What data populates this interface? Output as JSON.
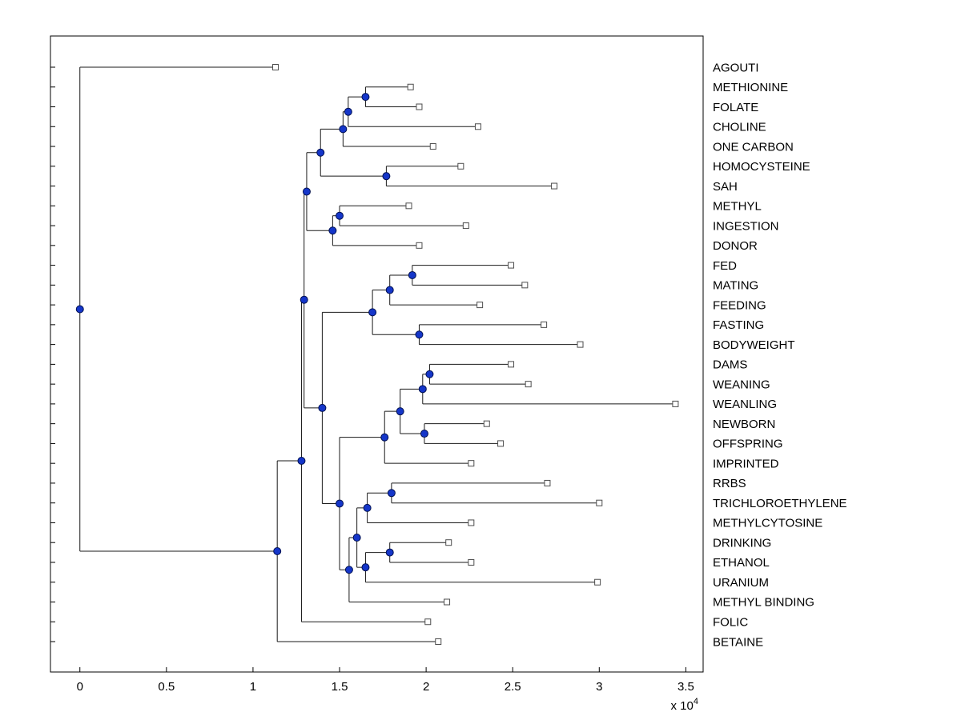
{
  "figure": {
    "background": "#ffffff",
    "colors": {
      "frame": "#000000",
      "branch": "#1a1a1a",
      "internal_node_fill": "#1536c9",
      "internal_node_edge": "#001050",
      "leaf_marker_fill": "#ffffff",
      "leaf_marker_edge": "#4d4d4d",
      "text": "#000000"
    }
  },
  "chart_data": {
    "type": "dendrogram",
    "orientation": "horizontal-root-left",
    "title": "",
    "xlabel": "",
    "ylabel": "",
    "x_axis": {
      "min": -0.17,
      "max": 3.6,
      "tick_values": [
        0,
        0.5,
        1,
        1.5,
        2,
        2.5,
        3,
        3.5
      ],
      "tick_labels": [
        "0",
        "0.5",
        "1",
        "1.5",
        "2",
        "2.5",
        "3",
        "3.5"
      ],
      "multiplier_base": "x 10",
      "multiplier_exponent": "4"
    },
    "y_axis": {
      "tick_per_leaf": true,
      "leaf_count": 30
    },
    "units_note": "branch x positions in units of 1e4",
    "leaves": [
      {
        "name": "AGOUTI",
        "x": 1.13
      },
      {
        "name": "METHIONINE",
        "x": 1.91
      },
      {
        "name": "FOLATE",
        "x": 1.96
      },
      {
        "name": "CHOLINE",
        "x": 2.3
      },
      {
        "name": "ONE CARBON",
        "x": 2.04
      },
      {
        "name": "HOMOCYSTEINE",
        "x": 2.2
      },
      {
        "name": "SAH",
        "x": 2.74
      },
      {
        "name": "METHYL",
        "x": 1.9
      },
      {
        "name": "INGESTION",
        "x": 2.23
      },
      {
        "name": "DONOR",
        "x": 1.96
      },
      {
        "name": "FED",
        "x": 2.49
      },
      {
        "name": "MATING",
        "x": 2.57
      },
      {
        "name": "FEEDING",
        "x": 2.31
      },
      {
        "name": "FASTING",
        "x": 2.68
      },
      {
        "name": "BODYWEIGHT",
        "x": 2.89
      },
      {
        "name": "DAMS",
        "x": 2.49
      },
      {
        "name": "WEANING",
        "x": 2.59
      },
      {
        "name": "WEANLING",
        "x": 3.44
      },
      {
        "name": "NEWBORN",
        "x": 2.35
      },
      {
        "name": "OFFSPRING",
        "x": 2.43
      },
      {
        "name": "IMPRINTED",
        "x": 2.26
      },
      {
        "name": "RRBS",
        "x": 2.7
      },
      {
        "name": "TRICHLOROETHYLENE",
        "x": 3.0
      },
      {
        "name": "METHYLCYTOSINE",
        "x": 2.26
      },
      {
        "name": "DRINKING",
        "x": 2.13
      },
      {
        "name": "ETHANOL",
        "x": 2.26
      },
      {
        "name": "URANIUM",
        "x": 2.99
      },
      {
        "name": "METHYL BINDING",
        "x": 2.12
      },
      {
        "name": "FOLIC",
        "x": 2.01
      },
      {
        "name": "BETAINE",
        "x": 2.07
      }
    ],
    "tree": {
      "x": 0,
      "children": [
        {
          "name": "AGOUTI",
          "x": 1.13
        },
        {
          "x": 1.14,
          "children": [
            {
              "x": 1.28,
              "children": [
                {
                  "x": 1.295,
                  "children": [
                    {
                      "x": 1.31,
                      "children": [
                        {
                          "x": 1.39,
                          "children": [
                            {
                              "x": 1.52,
                              "children": [
                                {
                                  "x": 1.55,
                                  "children": [
                                    {
                                      "x": 1.65,
                                      "children": [
                                        {
                                          "name": "METHIONINE",
                                          "x": 1.91
                                        },
                                        {
                                          "name": "FOLATE",
                                          "x": 1.96
                                        }
                                      ]
                                    },
                                    {
                                      "name": "CHOLINE",
                                      "x": 2.3
                                    }
                                  ]
                                },
                                {
                                  "name": "ONE CARBON",
                                  "x": 2.04
                                }
                              ]
                            },
                            {
                              "x": 1.77,
                              "children": [
                                {
                                  "name": "HOMOCYSTEINE",
                                  "x": 2.2
                                },
                                {
                                  "name": "SAH",
                                  "x": 2.74
                                }
                              ]
                            }
                          ]
                        },
                        {
                          "x": 1.46,
                          "children": [
                            {
                              "x": 1.5,
                              "children": [
                                {
                                  "name": "METHYL",
                                  "x": 1.9
                                },
                                {
                                  "name": "INGESTION",
                                  "x": 2.23
                                }
                              ]
                            },
                            {
                              "name": "DONOR",
                              "x": 1.96
                            }
                          ]
                        }
                      ]
                    },
                    {
                      "x": 1.4,
                      "children": [
                        {
                          "x": 1.69,
                          "children": [
                            {
                              "x": 1.79,
                              "children": [
                                {
                                  "x": 1.92,
                                  "children": [
                                    {
                                      "name": "FED",
                                      "x": 2.49
                                    },
                                    {
                                      "name": "MATING",
                                      "x": 2.57
                                    }
                                  ]
                                },
                                {
                                  "name": "FEEDING",
                                  "x": 2.31
                                }
                              ]
                            },
                            {
                              "x": 1.96,
                              "children": [
                                {
                                  "name": "FASTING",
                                  "x": 2.68
                                },
                                {
                                  "name": "BODYWEIGHT",
                                  "x": 2.89
                                }
                              ]
                            }
                          ]
                        },
                        {
                          "x": 1.5,
                          "children": [
                            {
                              "x": 1.76,
                              "children": [
                                {
                                  "x": 1.85,
                                  "children": [
                                    {
                                      "x": 1.98,
                                      "children": [
                                        {
                                          "x": 2.02,
                                          "children": [
                                            {
                                              "name": "DAMS",
                                              "x": 2.49
                                            },
                                            {
                                              "name": "WEANING",
                                              "x": 2.59
                                            }
                                          ]
                                        },
                                        {
                                          "name": "WEANLING",
                                          "x": 3.44
                                        }
                                      ]
                                    },
                                    {
                                      "x": 1.99,
                                      "children": [
                                        {
                                          "name": "NEWBORN",
                                          "x": 2.35
                                        },
                                        {
                                          "name": "OFFSPRING",
                                          "x": 2.43
                                        }
                                      ]
                                    }
                                  ]
                                },
                                {
                                  "name": "IMPRINTED",
                                  "x": 2.26
                                }
                              ]
                            },
                            {
                              "x": 1.555,
                              "children": [
                                {
                                  "x": 1.6,
                                  "children": [
                                    {
                                      "x": 1.66,
                                      "children": [
                                        {
                                          "x": 1.8,
                                          "children": [
                                            {
                                              "name": "RRBS",
                                              "x": 2.7
                                            },
                                            {
                                              "name": "TRICHLOROETHYLENE",
                                              "x": 3.0
                                            }
                                          ]
                                        },
                                        {
                                          "name": "METHYLCYTOSINE",
                                          "x": 2.26
                                        }
                                      ]
                                    },
                                    {
                                      "x": 1.65,
                                      "children": [
                                        {
                                          "x": 1.79,
                                          "children": [
                                            {
                                              "name": "DRINKING",
                                              "x": 2.13
                                            },
                                            {
                                              "name": "ETHANOL",
                                              "x": 2.26
                                            }
                                          ]
                                        },
                                        {
                                          "name": "URANIUM",
                                          "x": 2.99
                                        }
                                      ]
                                    }
                                  ]
                                },
                                {
                                  "name": "METHYL BINDING",
                                  "x": 2.12
                                }
                              ]
                            }
                          ]
                        }
                      ]
                    }
                  ]
                },
                {
                  "name": "FOLIC",
                  "x": 2.01
                }
              ]
            },
            {
              "name": "BETAINE",
              "x": 2.07
            }
          ]
        }
      ]
    }
  }
}
